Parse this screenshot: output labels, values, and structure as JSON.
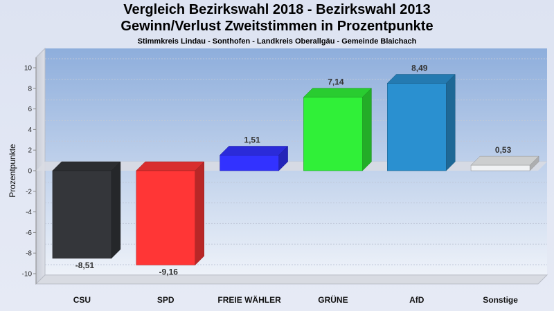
{
  "title": "Vergleich Bezirkswahl 2018 - Bezirkswahl 2013",
  "subtitle": "Gewinn/Verlust Zweitstimmen in Prozentpunkte",
  "subsubtitle": "Stimmkreis Lindau - Sonthofen - Landkreis Oberallgäu - Gemeinde Blaichach",
  "chart_data": {
    "type": "bar",
    "title": "Vergleich Bezirkswahl 2018 - Bezirkswahl 2013",
    "xlabel": "",
    "ylabel": "Prozentpunkte",
    "ylim": [
      -11,
      11
    ],
    "yticks": [
      10,
      8,
      6,
      4,
      2,
      0,
      -2,
      -4,
      -6,
      -8,
      -10
    ],
    "categories": [
      "CSU",
      "SPD",
      "FREIE WÄHLER",
      "GRÜNE",
      "AfD",
      "Sonstige"
    ],
    "values": [
      -8.51,
      -9.16,
      1.51,
      7.14,
      8.49,
      0.53
    ],
    "value_labels": [
      "-8,51",
      "-9,16",
      "1,51",
      "7,14",
      "8,49",
      "0,53"
    ],
    "colors": [
      "#34363a",
      "#ff3636",
      "#3232ff",
      "#30f038",
      "#2a90d0",
      "#f0f2f4"
    ],
    "grid": true,
    "legend": "none"
  }
}
